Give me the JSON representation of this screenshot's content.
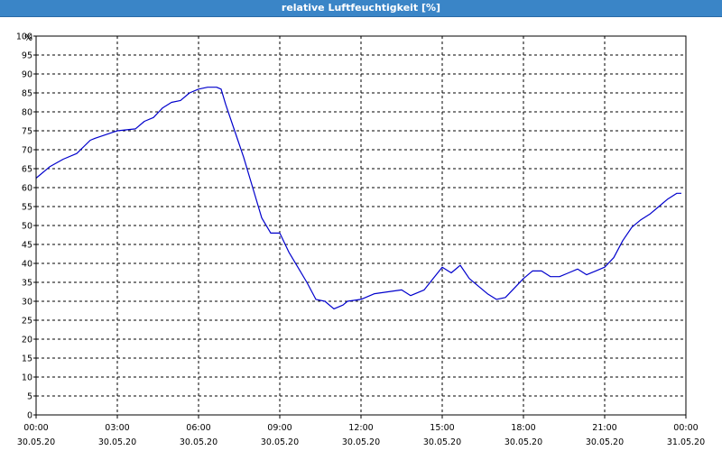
{
  "window": {
    "title": "relative Luftfeuchtigkeit [%]"
  },
  "colors": {
    "titlebar": "#3a85c7",
    "line": "#0000cc",
    "grid": "#000000"
  },
  "chart_data": {
    "type": "line",
    "title": "relative Luftfeuchtigkeit [%]",
    "ylabel": "%",
    "ylim": [
      0,
      100
    ],
    "y_ticks": [
      0,
      5,
      10,
      15,
      20,
      25,
      30,
      35,
      40,
      45,
      50,
      55,
      60,
      65,
      70,
      75,
      80,
      85,
      90,
      95,
      100
    ],
    "xlim": [
      "00:00",
      "24:00"
    ],
    "x_ticks": [
      {
        "time": "00:00",
        "date": "30.05.20"
      },
      {
        "time": "03:00",
        "date": "30.05.20"
      },
      {
        "time": "06:00",
        "date": "30.05.20"
      },
      {
        "time": "09:00",
        "date": "30.05.20"
      },
      {
        "time": "12:00",
        "date": "30.05.20"
      },
      {
        "time": "15:00",
        "date": "30.05.20"
      },
      {
        "time": "18:00",
        "date": "30.05.20"
      },
      {
        "time": "21:00",
        "date": "30.05.20"
      },
      {
        "time": "00:00",
        "date": "31.05.20"
      }
    ],
    "grid": true,
    "series": [
      {
        "color": "#0000cc",
        "x": [
          "00:00",
          "00:30",
          "01:00",
          "01:30",
          "02:00",
          "02:10",
          "03:00",
          "03:40",
          "04:00",
          "04:20",
          "04:40",
          "05:00",
          "05:20",
          "05:40",
          "06:00",
          "06:20",
          "06:40",
          "06:50",
          "07:00",
          "07:20",
          "07:40",
          "08:00",
          "08:20",
          "08:40",
          "09:00",
          "09:20",
          "09:40",
          "10:00",
          "10:20",
          "10:40",
          "11:00",
          "11:20",
          "11:30",
          "12:00",
          "12:30",
          "13:00",
          "13:30",
          "13:50",
          "14:20",
          "14:40",
          "15:00",
          "15:20",
          "15:40",
          "16:00",
          "16:20",
          "16:40",
          "17:00",
          "17:20",
          "17:40",
          "18:00",
          "18:20",
          "18:40",
          "19:00",
          "19:20",
          "19:40",
          "20:00",
          "20:20",
          "20:40",
          "21:00",
          "21:20",
          "21:40",
          "22:00",
          "22:20",
          "22:40",
          "23:00",
          "23:20",
          "23:40",
          "23:50"
        ],
        "y": [
          62.5,
          65.5,
          67.5,
          69,
          72.5,
          73,
          75,
          75.5,
          77.5,
          78.5,
          81,
          82.5,
          83,
          85,
          86,
          86.5,
          86.5,
          86,
          82,
          75,
          68,
          60,
          52,
          48,
          48,
          43,
          39,
          35,
          30.5,
          30,
          28,
          29,
          30,
          30.5,
          32,
          32.5,
          33,
          31.5,
          33,
          36,
          39,
          37.5,
          39.5,
          36,
          34,
          32,
          30.5,
          31,
          33.5,
          36,
          38,
          38,
          36.5,
          36.5,
          37.5,
          38.5,
          37,
          38,
          39,
          41.5,
          46,
          49.5,
          51.5,
          53,
          55,
          57,
          58.5,
          58.5
        ]
      }
    ]
  }
}
